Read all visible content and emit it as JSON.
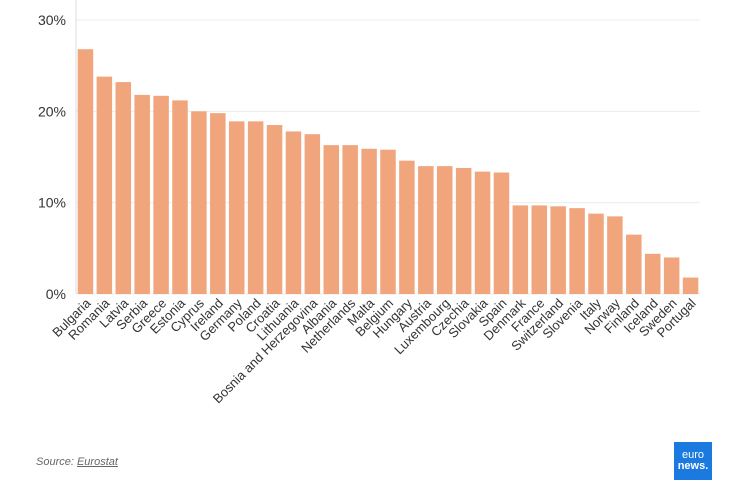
{
  "chart_data": {
    "type": "bar",
    "categories": [
      "Bulgaria",
      "Romania",
      "Latvia",
      "Serbia",
      "Greece",
      "Estonia",
      "Cyprus",
      "Ireland",
      "Germany",
      "Poland",
      "Croatia",
      "Lithuania",
      "Bosnia and Herzegovina",
      "Albania",
      "Netherlands",
      "Malta",
      "Belgium",
      "Hungary",
      "Austria",
      "Luxembourg",
      "Czechia",
      "Slovakia",
      "Spain",
      "Denmark",
      "France",
      "Switzerland",
      "Slovenia",
      "Italy",
      "Norway",
      "Finland",
      "Iceland",
      "Sweden",
      "Portugal"
    ],
    "values": [
      26.8,
      23.8,
      23.2,
      21.8,
      21.7,
      21.2,
      20.0,
      19.8,
      18.9,
      18.9,
      18.5,
      17.8,
      17.5,
      16.3,
      16.3,
      15.9,
      15.8,
      14.6,
      14.0,
      14.0,
      13.8,
      13.4,
      13.3,
      9.7,
      9.7,
      9.6,
      9.4,
      8.8,
      8.5,
      6.5,
      4.4,
      4.0,
      1.8
    ],
    "yticks": [
      "0%",
      "10%",
      "20%",
      "30%"
    ],
    "ytick_values": [
      0,
      10,
      20,
      30
    ],
    "ylim": [
      0,
      30
    ],
    "bar_color": "#f0a57d",
    "grid": true
  },
  "source": {
    "prefix": "Source: ",
    "link": "Eurostat"
  },
  "logo": {
    "line1": "euro",
    "line2": "news."
  }
}
